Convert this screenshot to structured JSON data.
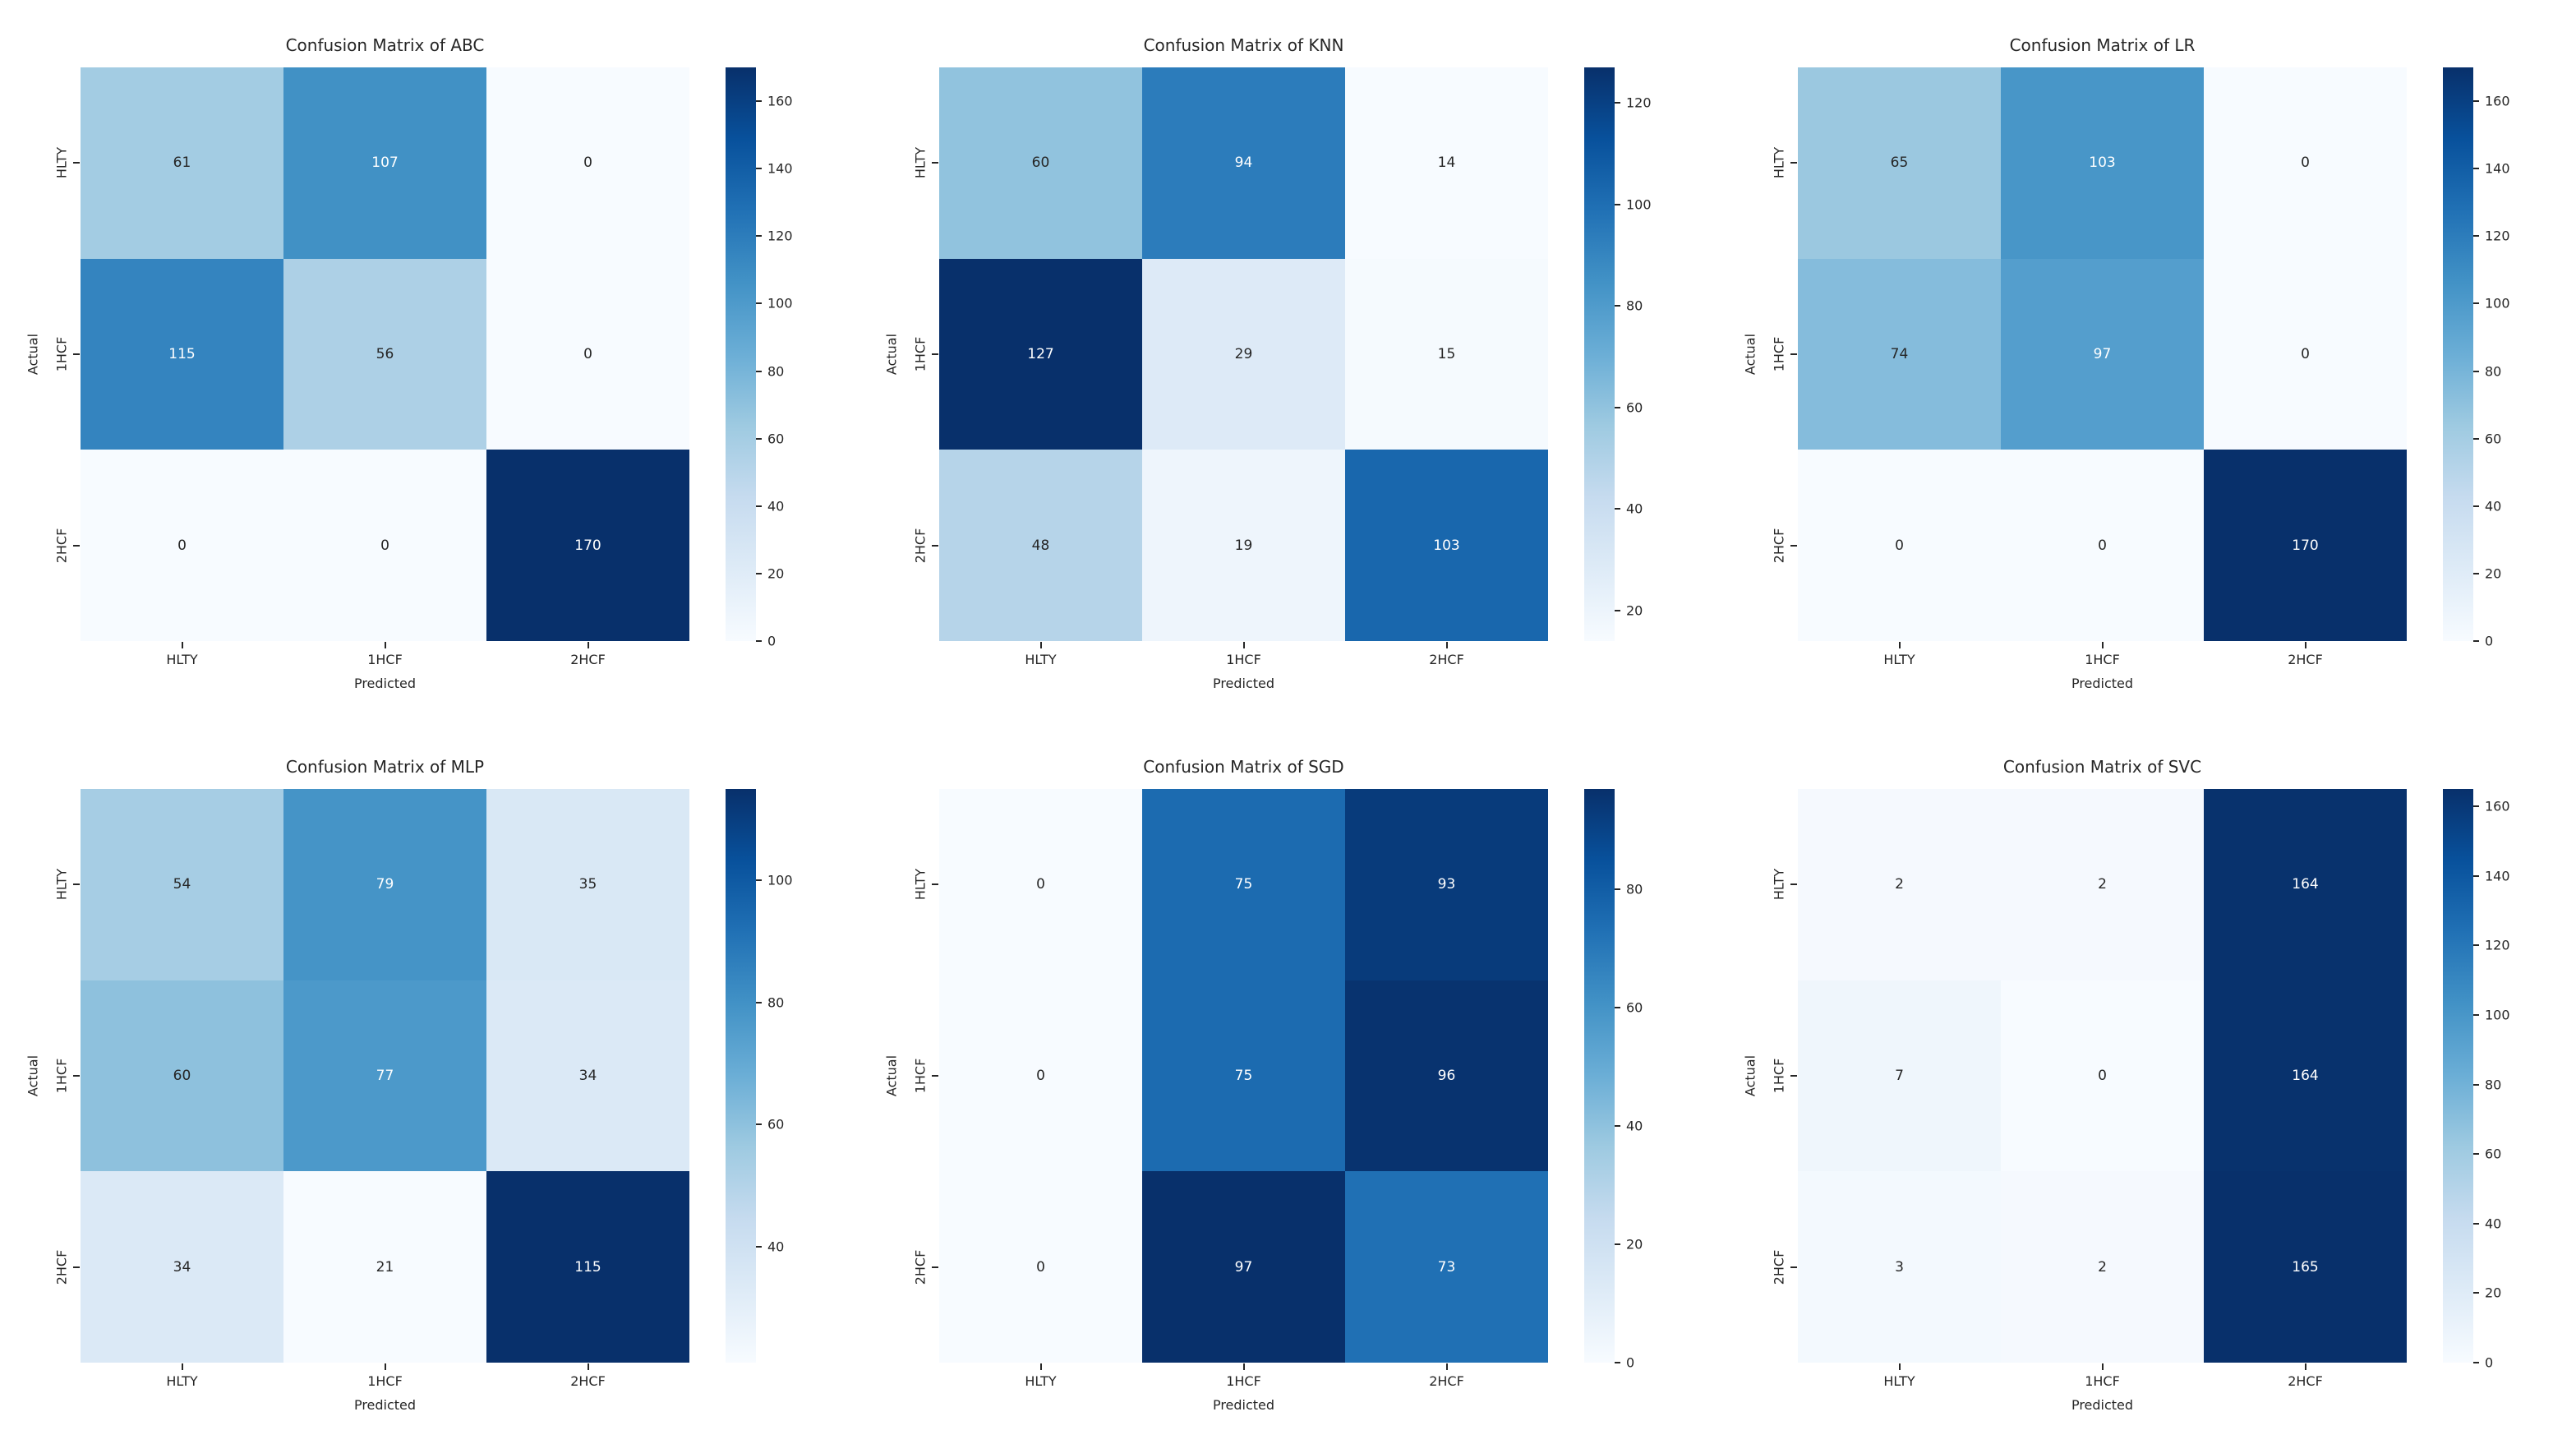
{
  "figure": {
    "layout": "2x3 grid of seaborn confusion-matrix heatmaps",
    "colormap_name": "Blues"
  },
  "colors": {
    "background": "#ffffff",
    "text": "#262626",
    "annotation_light": "#ffffff",
    "blues_colormap_stops": [
      "#f7fbff",
      "#deebf7",
      "#c6dbef",
      "#9ecae1",
      "#6baed6",
      "#4292c6",
      "#2171b5",
      "#08519c",
      "#08306b"
    ]
  },
  "chart_data": [
    {
      "type": "heatmap",
      "model": "ABC",
      "title": "Confusion Matrix of ABC",
      "xlabel": "Predicted",
      "ylabel": "Actual",
      "x_ticklabels": [
        "HLTY",
        "1HCF",
        "2HCF"
      ],
      "y_ticklabels": [
        "HLTY",
        "1HCF",
        "2HCF"
      ],
      "matrix": [
        [
          61,
          107,
          0
        ],
        [
          115,
          56,
          0
        ],
        [
          0,
          0,
          170
        ]
      ],
      "vmin": 0,
      "vmax": 170,
      "colorbar_ticks": [
        0,
        20,
        40,
        60,
        80,
        100,
        120,
        140,
        160
      ],
      "legend_position": "right-colorbar",
      "grid": false
    },
    {
      "type": "heatmap",
      "model": "KNN",
      "title": "Confusion Matrix of KNN",
      "xlabel": "Predicted",
      "ylabel": "Actual",
      "x_ticklabels": [
        "HLTY",
        "1HCF",
        "2HCF"
      ],
      "y_ticklabels": [
        "HLTY",
        "1HCF",
        "2HCF"
      ],
      "matrix": [
        [
          60,
          94,
          14
        ],
        [
          127,
          29,
          15
        ],
        [
          48,
          19,
          103
        ]
      ],
      "vmin": 14,
      "vmax": 127,
      "colorbar_ticks": [
        20,
        40,
        60,
        80,
        100,
        120
      ],
      "legend_position": "right-colorbar",
      "grid": false
    },
    {
      "type": "heatmap",
      "model": "LR",
      "title": "Confusion Matrix of LR",
      "xlabel": "Predicted",
      "ylabel": "Actual",
      "x_ticklabels": [
        "HLTY",
        "1HCF",
        "2HCF"
      ],
      "y_ticklabels": [
        "HLTY",
        "1HCF",
        "2HCF"
      ],
      "matrix": [
        [
          65,
          103,
          0
        ],
        [
          74,
          97,
          0
        ],
        [
          0,
          0,
          170
        ]
      ],
      "vmin": 0,
      "vmax": 170,
      "colorbar_ticks": [
        0,
        20,
        40,
        60,
        80,
        100,
        120,
        140,
        160
      ],
      "legend_position": "right-colorbar",
      "grid": false
    },
    {
      "type": "heatmap",
      "model": "MLP",
      "title": "Confusion Matrix of MLP",
      "xlabel": "Predicted",
      "ylabel": "Actual",
      "x_ticklabels": [
        "HLTY",
        "1HCF",
        "2HCF"
      ],
      "y_ticklabels": [
        "HLTY",
        "1HCF",
        "2HCF"
      ],
      "matrix": [
        [
          54,
          79,
          35
        ],
        [
          60,
          77,
          34
        ],
        [
          34,
          21,
          115
        ]
      ],
      "vmin": 21,
      "vmax": 115,
      "colorbar_ticks": [
        40,
        60,
        80,
        100
      ],
      "legend_position": "right-colorbar",
      "grid": false
    },
    {
      "type": "heatmap",
      "model": "SGD",
      "title": "Confusion Matrix of SGD",
      "xlabel": "Predicted",
      "ylabel": "Actual",
      "x_ticklabels": [
        "HLTY",
        "1HCF",
        "2HCF"
      ],
      "y_ticklabels": [
        "HLTY",
        "1HCF",
        "2HCF"
      ],
      "matrix": [
        [
          0,
          75,
          93
        ],
        [
          0,
          75,
          96
        ],
        [
          0,
          97,
          73
        ]
      ],
      "vmin": 0,
      "vmax": 97,
      "colorbar_ticks": [
        0,
        20,
        40,
        60,
        80
      ],
      "legend_position": "right-colorbar",
      "grid": false
    },
    {
      "type": "heatmap",
      "model": "SVC",
      "title": "Confusion Matrix of SVC",
      "xlabel": "Predicted",
      "ylabel": "Actual",
      "x_ticklabels": [
        "HLTY",
        "1HCF",
        "2HCF"
      ],
      "y_ticklabels": [
        "HLTY",
        "1HCF",
        "2HCF"
      ],
      "matrix": [
        [
          2,
          2,
          164
        ],
        [
          7,
          0,
          164
        ],
        [
          3,
          2,
          165
        ]
      ],
      "vmin": 0,
      "vmax": 165,
      "colorbar_ticks": [
        0,
        20,
        40,
        60,
        80,
        100,
        120,
        140,
        160
      ],
      "legend_position": "right-colorbar",
      "grid": false
    }
  ]
}
